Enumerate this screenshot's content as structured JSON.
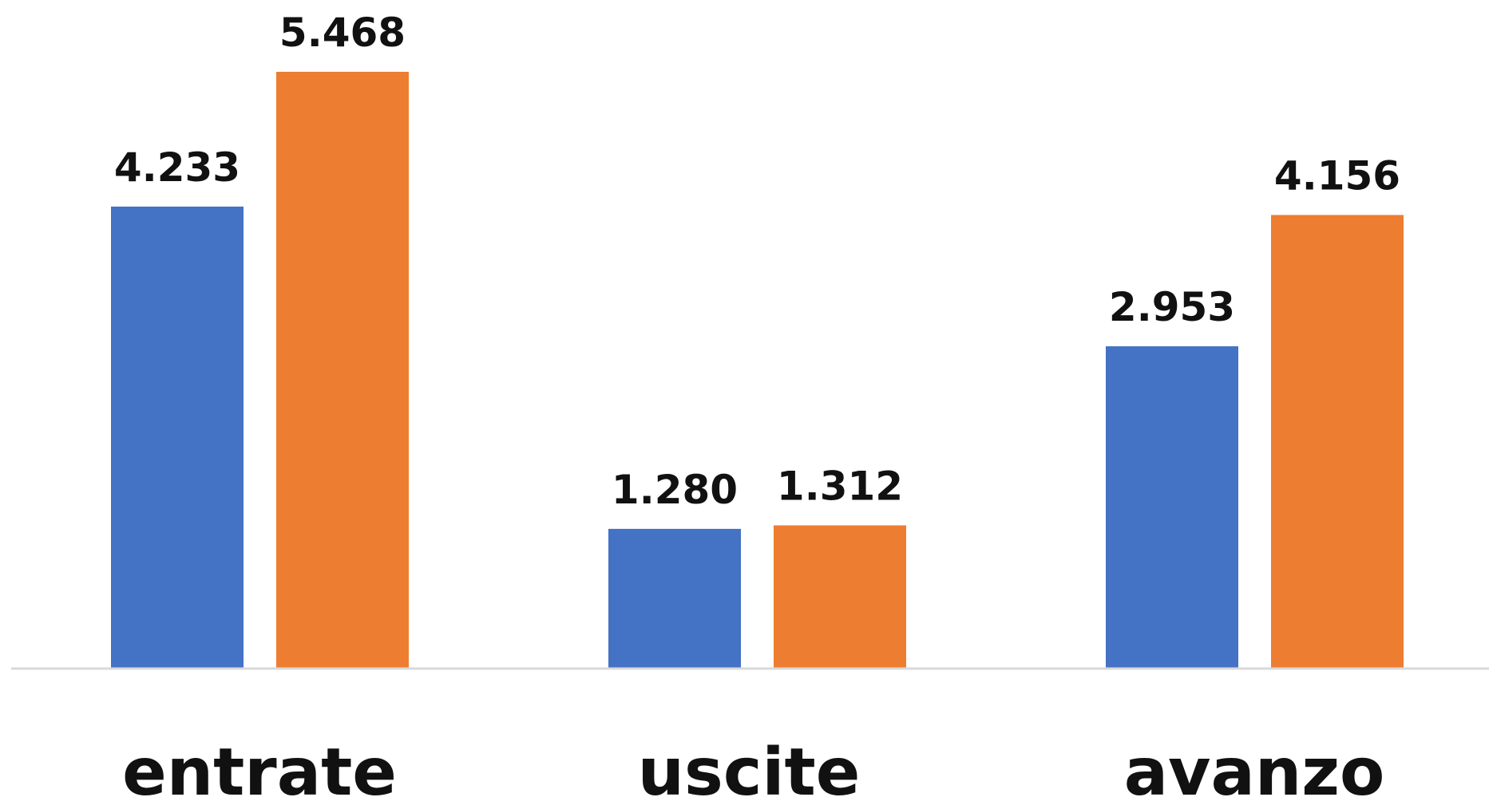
{
  "chart_data": {
    "type": "bar",
    "categories": [
      "entrate",
      "uscite",
      "avanzo"
    ],
    "series": [
      {
        "values": [
          4233,
          1280,
          2953
        ],
        "labels": [
          "4.233",
          "1.280",
          "2.953"
        ],
        "color": "#4472C4"
      },
      {
        "values": [
          5468,
          1312,
          4156
        ],
        "labels": [
          "5.468",
          "1.312",
          "4.156"
        ],
        "color": "#ED7D31"
      }
    ],
    "ylim": [
      0,
      5468
    ],
    "grid": false,
    "legend": "none",
    "baseline_color": "#d9d9d9"
  }
}
